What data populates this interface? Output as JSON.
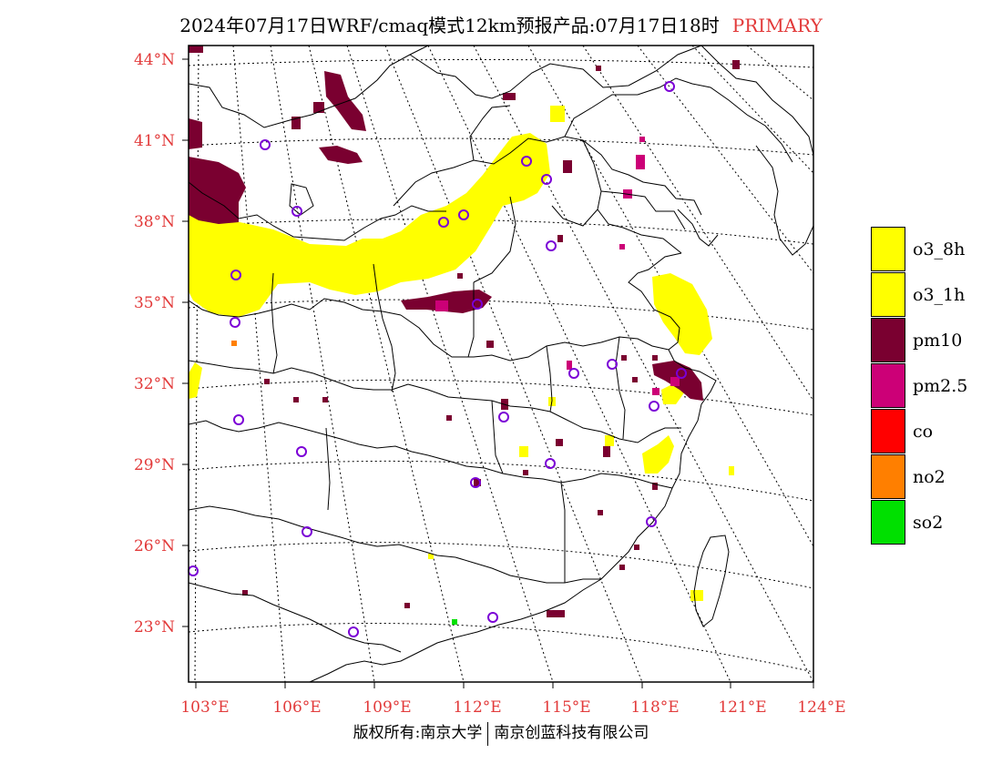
{
  "title": {
    "main": "2024年07月17日WRF/cmaq模式12km预报产品:07月17日18时",
    "tag": "PRIMARY"
  },
  "axes": {
    "lat_labels": [
      "44°N",
      "41°N",
      "38°N",
      "35°N",
      "32°N",
      "29°N",
      "26°N",
      "23°N"
    ],
    "lon_labels": [
      "103°E",
      "106°E",
      "109°E",
      "112°E",
      "115°E",
      "118°E",
      "121°E",
      "124°E"
    ],
    "grid": "dotted"
  },
  "colors": {
    "o3_8h": "#ffff00",
    "o3_1h": "#ffff00",
    "pm10": "#7a0030",
    "pm2_5": "#cc0077",
    "co": "#ff0000",
    "no2": "#ff7f00",
    "so2": "#00e000",
    "station": "#7b00d6",
    "tick_label": "#e23a3a"
  },
  "legend": {
    "items": [
      {
        "label": "o3_8h",
        "color": "#ffff00"
      },
      {
        "label": "o3_1h",
        "color": "#ffff00"
      },
      {
        "label": "pm10",
        "color": "#7a0030"
      },
      {
        "label": "pm2.5",
        "color": "#cc0077"
      },
      {
        "label": "co",
        "color": "#ff0000"
      },
      {
        "label": "no2",
        "color": "#ff7f00"
      },
      {
        "label": "so2",
        "color": "#00e000"
      }
    ]
  },
  "footer": {
    "left": "版权所有:南京大学",
    "right": "南京创蓝科技有限公司"
  }
}
